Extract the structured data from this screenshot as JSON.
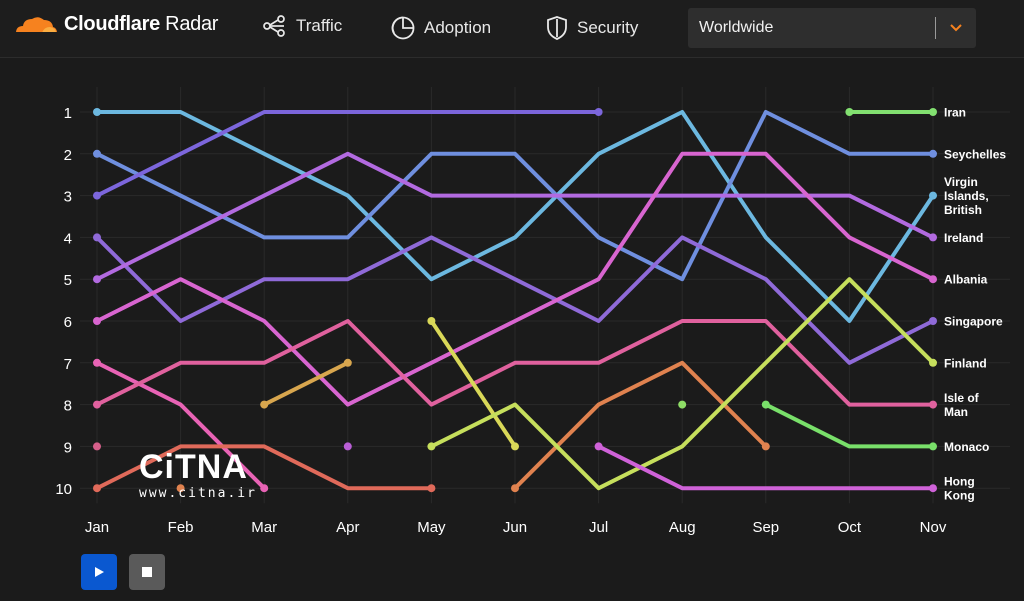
{
  "header": {
    "brand": "Cloudflare",
    "product": "Radar",
    "nav": [
      {
        "label": "Traffic",
        "icon": "traffic-icon"
      },
      {
        "label": "Adoption",
        "icon": "adoption-icon"
      },
      {
        "label": "Security",
        "icon": "security-icon"
      }
    ],
    "location_select": {
      "value": "Worldwide"
    }
  },
  "colors": {
    "accent": "#f6821f",
    "play": "#0a58d0",
    "background": "#1b1b1b"
  },
  "controls": {
    "play_icon": "play-icon",
    "stop_icon": "stop-icon"
  },
  "watermark": {
    "logo": "CiTNA",
    "url": "www.citna.ir"
  },
  "chart_data": {
    "type": "line",
    "chart_kind": "bump (rank over time)",
    "categories": [
      "Jan",
      "Feb",
      "Mar",
      "Apr",
      "May",
      "Jun",
      "Jul",
      "Aug",
      "Sep",
      "Oct",
      "Nov"
    ],
    "y_ticks": [
      1,
      2,
      3,
      4,
      5,
      6,
      7,
      8,
      9,
      10
    ],
    "ylim": [
      1,
      10
    ],
    "y_inverted": true,
    "grid": true,
    "end_labels": [
      "Iran",
      "Seychelles",
      "Virgin Islands, British",
      "Ireland",
      "Albania",
      "Singapore",
      "Finland",
      "Isle of Man",
      "Monaco",
      "Hong Kong"
    ],
    "series": [
      {
        "color": "#6cb8e0",
        "values": [
          1,
          1,
          2,
          3,
          5,
          4,
          2,
          1,
          4,
          6,
          3
        ]
      },
      {
        "color": "#6f8fdf",
        "values": [
          2,
          3,
          4,
          4,
          2,
          2,
          4,
          5,
          1,
          2,
          2
        ]
      },
      {
        "color": "#7c66dc",
        "values": [
          3,
          2,
          1,
          1,
          1,
          1,
          1,
          null,
          null,
          null,
          null
        ]
      },
      {
        "color": "#8f6ad8",
        "values": [
          4,
          6,
          5,
          5,
          4,
          5,
          6,
          4,
          5,
          7,
          6
        ]
      },
      {
        "color": "#b26ae0",
        "values": [
          5,
          4,
          3,
          2,
          3,
          3,
          3,
          3,
          3,
          3,
          4
        ]
      },
      {
        "color": "#d865d0",
        "values": [
          6,
          5,
          6,
          8,
          7,
          6,
          5,
          2,
          2,
          4,
          5
        ]
      },
      {
        "color": "#e863b5",
        "values": [
          7,
          8,
          10,
          null,
          null,
          null,
          null,
          null,
          null,
          null,
          null
        ]
      },
      {
        "color": "#e0619e",
        "values": [
          8,
          7,
          7,
          6,
          8,
          7,
          7,
          6,
          6,
          8,
          8
        ]
      },
      {
        "color": "#d55f8a",
        "values": [
          9,
          null,
          null,
          null,
          null,
          null,
          null,
          null,
          null,
          null,
          null
        ]
      },
      {
        "color": "#e06a5a",
        "values": [
          10,
          9,
          9,
          10,
          10,
          null,
          null,
          null,
          null,
          null,
          null
        ]
      },
      {
        "color": "#e0824f",
        "values": [
          null,
          10,
          null,
          null,
          null,
          10,
          8,
          7,
          9,
          null,
          null
        ]
      },
      {
        "color": "#d8a64e",
        "values": [
          null,
          null,
          8,
          7,
          null,
          null,
          null,
          null,
          null,
          null,
          null
        ]
      },
      {
        "color": "#d9d858",
        "values": [
          null,
          null,
          null,
          null,
          6,
          9,
          null,
          null,
          null,
          null,
          null
        ]
      },
      {
        "color": "#c6df5c",
        "values": [
          null,
          null,
          null,
          null,
          9,
          8,
          10,
          9,
          7,
          5,
          7
        ]
      },
      {
        "color": "#b95fd6",
        "values": [
          null,
          null,
          null,
          9,
          null,
          null,
          null,
          null,
          null,
          null,
          null
        ]
      },
      {
        "color": "#cf62d8",
        "values": [
          null,
          null,
          null,
          null,
          null,
          null,
          9,
          10,
          10,
          10,
          10
        ]
      },
      {
        "color": "#8edd66",
        "values": [
          null,
          null,
          null,
          null,
          null,
          null,
          null,
          8,
          null,
          null,
          null
        ]
      },
      {
        "color": "#79e06a",
        "values": [
          null,
          null,
          null,
          null,
          null,
          null,
          null,
          null,
          8,
          9,
          9
        ]
      },
      {
        "color": "#82e070",
        "values": [
          null,
          null,
          null,
          null,
          null,
          null,
          null,
          null,
          null,
          1,
          1
        ]
      }
    ]
  }
}
